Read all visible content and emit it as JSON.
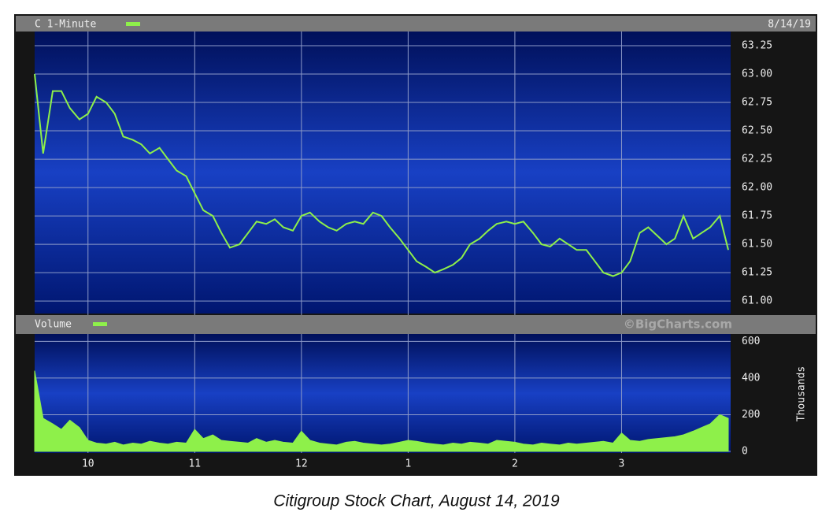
{
  "chart_data": [
    {
      "type": "line",
      "title": "C 1-Minute",
      "date": "8/14/19",
      "color": "#8ef04a",
      "grid": true,
      "xlim": [
        9.5,
        16
      ],
      "ylim": [
        60.89,
        63.375
      ],
      "yticks": [
        {
          "value": 61,
          "label": "61.00"
        },
        61.25,
        {
          "value": 61.5,
          "label": "61.50"
        },
        61.75,
        {
          "value": 62,
          "label": "62.00"
        },
        62.25,
        {
          "value": 62.5,
          "label": "62.50"
        },
        62.75,
        {
          "value": 63,
          "label": "63.00"
        },
        63.25
      ],
      "x": [
        9.5,
        9.58,
        9.67,
        9.75,
        9.83,
        9.92,
        10,
        10.08,
        10.17,
        10.25,
        10.33,
        10.42,
        10.5,
        10.58,
        10.67,
        10.75,
        10.83,
        10.92,
        11,
        11.08,
        11.17,
        11.25,
        11.33,
        11.42,
        11.5,
        11.58,
        11.67,
        11.75,
        11.83,
        11.92,
        12,
        12.08,
        12.17,
        12.25,
        12.33,
        12.42,
        12.5,
        12.58,
        12.67,
        12.75,
        12.83,
        12.92,
        13,
        13.08,
        13.17,
        13.25,
        13.33,
        13.42,
        13.5,
        13.58,
        13.67,
        13.75,
        13.83,
        13.92,
        14,
        14.08,
        14.17,
        14.25,
        14.33,
        14.42,
        14.5,
        14.58,
        14.67,
        14.75,
        14.83,
        14.92,
        15,
        15.08,
        15.17,
        15.25,
        15.33,
        15.42,
        15.5,
        15.58,
        15.67,
        15.75,
        15.83,
        15.92,
        16
      ],
      "values": [
        63.0,
        62.3,
        62.85,
        62.85,
        62.7,
        62.6,
        62.65,
        62.8,
        62.75,
        62.65,
        62.45,
        62.42,
        62.38,
        62.3,
        62.35,
        62.25,
        62.15,
        62.1,
        61.95,
        61.8,
        61.75,
        61.6,
        61.47,
        61.5,
        61.6,
        61.7,
        61.68,
        61.72,
        61.65,
        61.62,
        61.75,
        61.78,
        61.7,
        61.65,
        61.62,
        61.68,
        61.7,
        61.68,
        61.78,
        61.75,
        61.65,
        61.55,
        61.45,
        61.35,
        61.3,
        61.25,
        61.28,
        61.32,
        61.38,
        61.5,
        61.55,
        61.62,
        61.68,
        61.7,
        61.68,
        61.7,
        61.6,
        61.5,
        61.48,
        61.55,
        61.5,
        61.45,
        61.45,
        61.35,
        61.25,
        61.22,
        61.25,
        61.35,
        61.6,
        61.65,
        61.58,
        61.5,
        61.55,
        61.75,
        61.55,
        61.6,
        61.65,
        61.75,
        61.45
      ]
    },
    {
      "type": "area",
      "title": "Volume",
      "watermark": "©BigCharts.com",
      "y_label": "Thousands",
      "color": "#8ef04a",
      "grid": true,
      "xlim": [
        9.5,
        16
      ],
      "ylim": [
        0,
        640
      ],
      "yticks": [
        0,
        200,
        400,
        600
      ],
      "xticks": [
        10,
        11,
        12,
        {
          "value": 13,
          "label": "1"
        },
        {
          "value": 14,
          "label": "2"
        },
        {
          "value": 15,
          "label": "3"
        }
      ],
      "x": [
        9.5,
        9.58,
        9.67,
        9.75,
        9.83,
        9.92,
        10,
        10.08,
        10.17,
        10.25,
        10.33,
        10.42,
        10.5,
        10.58,
        10.67,
        10.75,
        10.83,
        10.92,
        11,
        11.08,
        11.17,
        11.25,
        11.33,
        11.42,
        11.5,
        11.58,
        11.67,
        11.75,
        11.83,
        11.92,
        12,
        12.08,
        12.17,
        12.25,
        12.33,
        12.42,
        12.5,
        12.58,
        12.67,
        12.75,
        12.83,
        12.92,
        13,
        13.08,
        13.17,
        13.25,
        13.33,
        13.42,
        13.5,
        13.58,
        13.67,
        13.75,
        13.83,
        13.92,
        14,
        14.08,
        14.17,
        14.25,
        14.33,
        14.42,
        14.5,
        14.58,
        14.67,
        14.75,
        14.83,
        14.92,
        15,
        15.08,
        15.17,
        15.25,
        15.33,
        15.42,
        15.5,
        15.58,
        15.67,
        15.75,
        15.83,
        15.92,
        16
      ],
      "values": [
        440,
        180,
        150,
        120,
        170,
        130,
        60,
        45,
        40,
        50,
        35,
        45,
        40,
        55,
        45,
        40,
        50,
        45,
        120,
        70,
        90,
        60,
        55,
        50,
        45,
        70,
        50,
        60,
        50,
        45,
        110,
        60,
        45,
        40,
        35,
        50,
        55,
        45,
        40,
        35,
        40,
        50,
        60,
        55,
        45,
        40,
        35,
        45,
        40,
        50,
        45,
        40,
        60,
        55,
        50,
        40,
        35,
        45,
        40,
        35,
        45,
        40,
        45,
        50,
        55,
        45,
        100,
        60,
        55,
        65,
        70,
        75,
        80,
        90,
        110,
        130,
        150,
        200,
        180
      ]
    }
  ],
  "caption": "Citigroup Stock Chart, August 14, 2019"
}
